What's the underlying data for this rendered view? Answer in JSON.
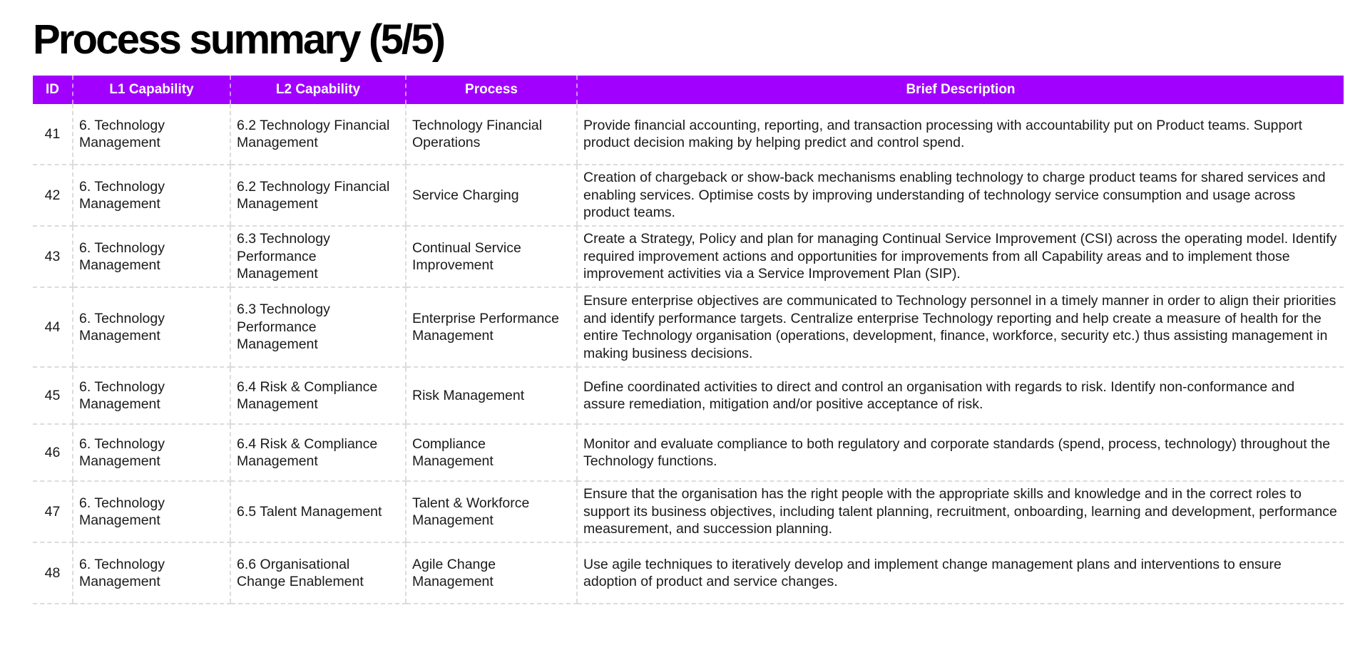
{
  "title": "Process summary (5/5)",
  "table": {
    "headers": [
      "ID",
      "L1 Capability",
      "L2 Capability",
      "Process",
      "Brief Description"
    ],
    "rows": [
      [
        "41",
        "6. Technology Management",
        "6.2 Technology Financial Management",
        "Technology Financial Operations",
        "Provide financial accounting, reporting, and transaction processing with accountability put on Product teams. Support product decision making by helping predict and control spend."
      ],
      [
        "42",
        "6. Technology Management",
        "6.2 Technology Financial Management",
        "Service Charging",
        "Creation of chargeback or show-back mechanisms enabling technology to charge product teams for shared services and enabling services. Optimise costs by improving understanding of technology service consumption and usage across product teams."
      ],
      [
        "43",
        "6. Technology Management",
        "6.3 Technology Performance Management",
        "Continual Service Improvement",
        "Create a Strategy, Policy and plan for managing Continual Service Improvement (CSI) across the operating model. Identify required improvement actions and opportunities for improvements from all Capability areas and to implement those improvement activities via a Service Improvement Plan (SIP)."
      ],
      [
        "44",
        "6. Technology Management",
        "6.3 Technology Performance Management",
        "Enterprise Performance Management",
        "Ensure enterprise objectives are communicated to Technology personnel in a timely manner in order to align their priorities and identify performance targets. Centralize enterprise Technology reporting and help create a measure of health for the entire Technology organisation (operations, development, finance, workforce, security etc.) thus assisting management in making business decisions."
      ],
      [
        "45",
        "6. Technology Management",
        "6.4 Risk & Compliance Management",
        "Risk Management",
        "Define coordinated activities to direct and control an organisation with regards to risk. Identify non-conformance and assure remediation, mitigation and/or positive acceptance of risk."
      ],
      [
        "46",
        "6. Technology Management",
        "6.4 Risk & Compliance Management",
        "Compliance Management",
        "Monitor and evaluate compliance to both regulatory and corporate standards (spend, process, technology) throughout the Technology functions."
      ],
      [
        "47",
        "6. Technology Management",
        "6.5 Talent Management",
        "Talent & Workforce Management",
        "Ensure that the organisation has the right people with the appropriate skills and knowledge and in the correct roles to support its business objectives, including talent planning, recruitment, onboarding, learning and development, performance measurement, and succession planning."
      ],
      [
        "48",
        "6. Technology Management",
        "6.6 Organisational Change Enablement",
        "Agile Change Management",
        "Use agile techniques to iteratively develop and implement change management plans and interventions to ensure adoption of product and service changes."
      ]
    ]
  },
  "colors": {
    "header_bg": "#a100ff",
    "header_text": "#ffffff",
    "divider": "#dcdcdc"
  }
}
